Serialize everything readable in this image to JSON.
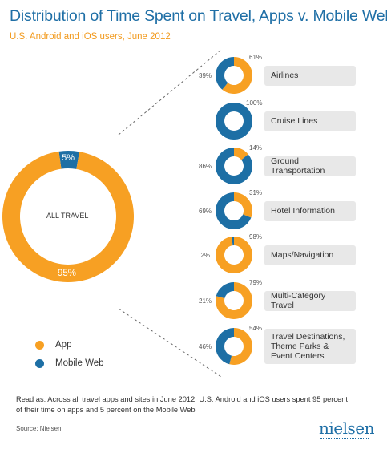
{
  "title": "Distribution of Time Spent on Travel, Apps v. Mobile Web",
  "subtitle": "U.S. Android and iOS users, June 2012",
  "colors": {
    "app": "#f7a023",
    "mobile_web": "#1d6fa5"
  },
  "chart_data": {
    "type": "donut",
    "main": {
      "label": "ALL TRAVEL",
      "app": 95,
      "mobile_web": 5,
      "app_label": "95%",
      "mobile_web_label": "5%"
    },
    "categories": [
      {
        "name": "Airlines",
        "app": 61,
        "mobile_web": 39,
        "app_label": "61%",
        "mobile_web_label": "39%"
      },
      {
        "name": "Cruise Lines",
        "app": 0,
        "mobile_web": 100,
        "app_label": "",
        "mobile_web_label": "100%"
      },
      {
        "name": "Ground Transportation",
        "app": 14,
        "mobile_web": 86,
        "app_label": "14%",
        "mobile_web_label": "86%"
      },
      {
        "name": "Hotel Information",
        "app": 31,
        "mobile_web": 69,
        "app_label": "31%",
        "mobile_web_label": "69%"
      },
      {
        "name": "Maps/Navigation",
        "app": 98,
        "mobile_web": 2,
        "app_label": "98%",
        "mobile_web_label": "2%"
      },
      {
        "name": "Multi-Category Travel",
        "app": 79,
        "mobile_web": 21,
        "app_label": "79%",
        "mobile_web_label": "21%"
      },
      {
        "name": "Travel Destinations, Theme Parks & Event Centers",
        "app": 54,
        "mobile_web": 46,
        "app_label": "54%",
        "mobile_web_label": "46%"
      }
    ]
  },
  "legend": {
    "app": "App",
    "mobile_web": "Mobile Web"
  },
  "note": "Read as: Across all travel apps and sites in June 2012, U.S. Android and iOS users spent 95 percent of their time on apps and 5 percent on the Mobile Web",
  "source": "Source: Nielsen",
  "logo": "nielsen"
}
